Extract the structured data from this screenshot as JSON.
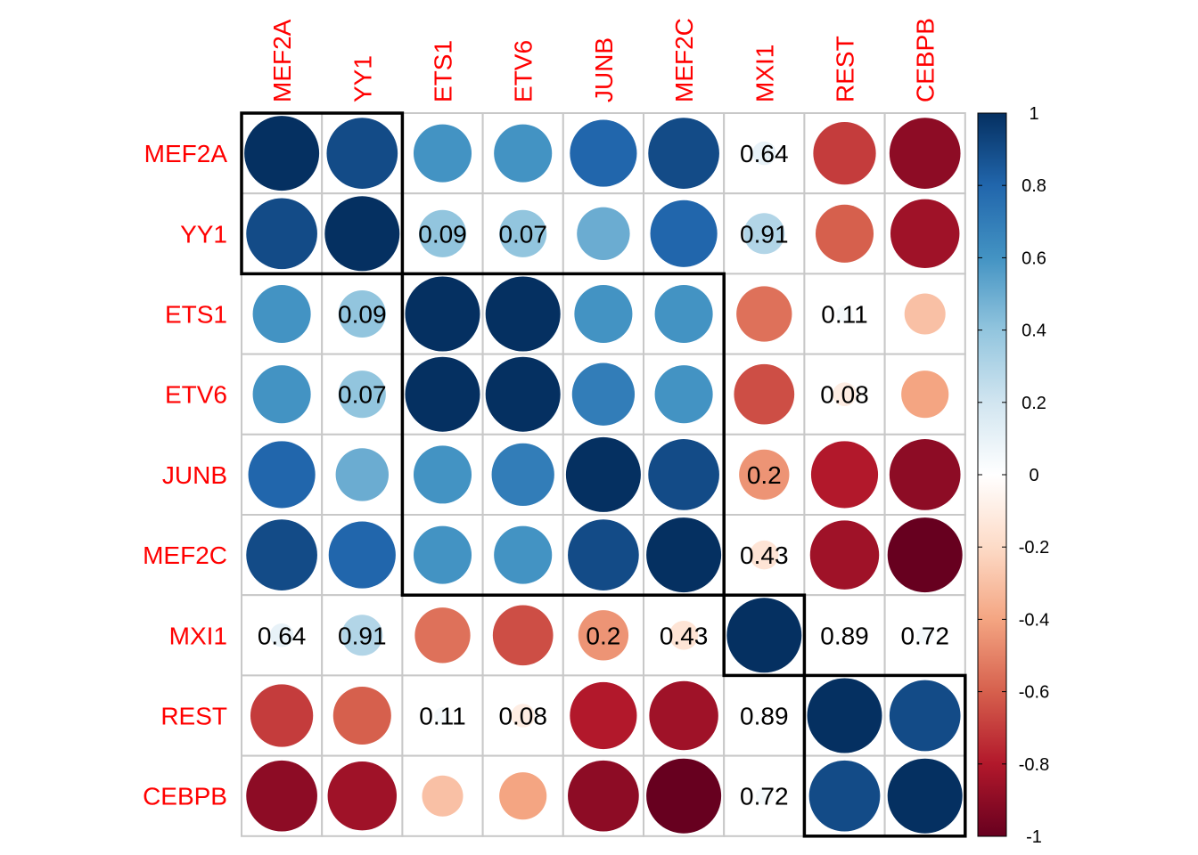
{
  "chart_data": {
    "type": "heatmap",
    "variables": [
      "MEF2A",
      "YY1",
      "ETS1",
      "ETV6",
      "JUNB",
      "MEF2C",
      "MXI1",
      "REST",
      "CEBPB"
    ],
    "values": [
      [
        1.0,
        0.9,
        0.6,
        0.6,
        0.8,
        0.9,
        0.1,
        -0.7,
        -0.9
      ],
      [
        0.9,
        1.0,
        0.4,
        0.4,
        0.5,
        0.8,
        0.3,
        -0.6,
        -0.85
      ],
      [
        0.6,
        0.4,
        1.0,
        1.0,
        0.6,
        0.6,
        -0.55,
        0.05,
        -0.3
      ],
      [
        0.6,
        0.4,
        1.0,
        1.0,
        0.7,
        0.6,
        -0.65,
        -0.1,
        -0.4
      ],
      [
        0.8,
        0.5,
        0.6,
        0.7,
        1.0,
        0.9,
        -0.45,
        -0.8,
        -0.9
      ],
      [
        0.9,
        0.8,
        0.6,
        0.6,
        0.9,
        1.0,
        -0.15,
        -0.85,
        -1.0
      ],
      [
        0.1,
        0.3,
        -0.55,
        -0.65,
        -0.45,
        -0.15,
        1.0,
        0.02,
        0.05
      ],
      [
        -0.7,
        -0.6,
        0.05,
        -0.1,
        -0.8,
        -0.85,
        0.02,
        1.0,
        0.9
      ],
      [
        -0.9,
        -0.85,
        -0.3,
        -0.4,
        -0.9,
        -1.0,
        0.05,
        0.9,
        1.0
      ]
    ],
    "p_values": [
      [
        null,
        null,
        null,
        null,
        null,
        null,
        "0.64",
        null,
        null
      ],
      [
        null,
        null,
        "0.09",
        "0.07",
        null,
        null,
        "0.91",
        null,
        null
      ],
      [
        null,
        "0.09",
        null,
        null,
        null,
        null,
        null,
        "0.11",
        null
      ],
      [
        null,
        "0.07",
        null,
        null,
        null,
        null,
        null,
        "0.08",
        null
      ],
      [
        null,
        null,
        null,
        null,
        null,
        null,
        "0.2",
        null,
        null
      ],
      [
        null,
        null,
        null,
        null,
        null,
        null,
        "0.43",
        null,
        null
      ],
      [
        "0.64",
        "0.91",
        null,
        null,
        "0.2",
        "0.43",
        null,
        "0.89",
        "0.72"
      ],
      [
        null,
        null,
        "0.11",
        "0.08",
        null,
        null,
        "0.89",
        null,
        null
      ],
      [
        null,
        null,
        null,
        null,
        null,
        null,
        "0.72",
        null,
        null
      ]
    ],
    "clusters": [
      [
        0,
        1
      ],
      [
        2,
        5
      ],
      [
        6,
        6
      ],
      [
        7,
        8
      ]
    ],
    "colorbar": {
      "range": [
        -1,
        1
      ],
      "ticks": [
        "1",
        "0.8",
        "0.6",
        "0.4",
        "0.2",
        "0",
        "-0.2",
        "-0.4",
        "-0.6",
        "-0.8",
        "-1"
      ]
    },
    "colors": {
      "label": "#ff0000",
      "grid": "#c8c8c8",
      "cluster_rect": "#000000",
      "scale": [
        "#67001F",
        "#B2182B",
        "#D6604D",
        "#F4A582",
        "#FDDBC7",
        "#FFFFFF",
        "#D1E5F0",
        "#92C5DE",
        "#4393C3",
        "#2166AC",
        "#053061"
      ]
    }
  }
}
